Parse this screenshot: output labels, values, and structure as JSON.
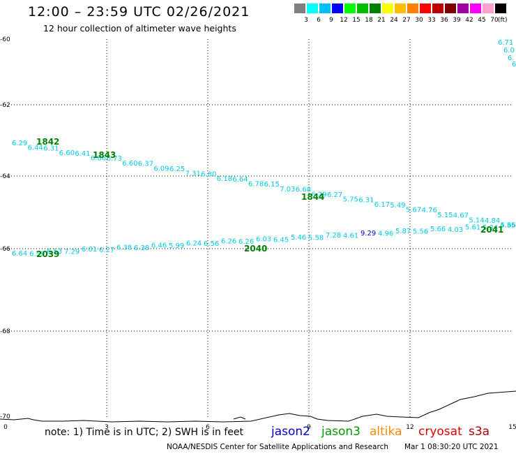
{
  "header": {
    "title": "12:00 – 23:59 UTC 02/26/2021",
    "subtitle": "12 hour collection of altimeter wave heights"
  },
  "legend": {
    "colors": [
      "#808080",
      "#00ffff",
      "#00bfff",
      "#0000ff",
      "#00ff00",
      "#00bf00",
      "#008000",
      "#ffff00",
      "#ffbf00",
      "#ff8000",
      "#ff0000",
      "#bf0000",
      "#800000",
      "#a000a0",
      "#ff00ff",
      "#ffa0d0",
      "#000000"
    ],
    "labels": [
      "3",
      "6",
      "9",
      "12",
      "15",
      "18",
      "21",
      "24",
      "27",
      "30",
      "33",
      "36",
      "39",
      "42",
      "45",
      "70"
    ],
    "unit": "(ft)"
  },
  "axes": {
    "x_ticks": [
      "0",
      "3",
      "6",
      "9",
      "12",
      "15"
    ],
    "y_ticks": [
      "-60",
      "-62",
      "-64",
      "-66",
      "-68",
      "-70"
    ]
  },
  "tracks": {
    "upper_heights": [
      "6.29",
      "6.44",
      "6.31",
      "6.60",
      "6.41",
      "6.86",
      "6.73",
      "6.60",
      "6.37",
      "6.09",
      "6.25",
      "7.31",
      "6.80",
      "6.18",
      "6.64",
      "6.78",
      "6.15",
      "7.03",
      "6.68",
      "6.29",
      "6.27",
      "5.75",
      "6.31",
      "6.17",
      "5.49",
      "5.67",
      "4.76",
      "5.15",
      "4.67",
      "5.14",
      "4.84",
      "5.66",
      "5.66"
    ],
    "upper_labels": [
      "1842",
      "1843",
      "1844"
    ],
    "lower_heights": [
      "6.64",
      "6.59",
      "6.53",
      "7.29",
      "6.01",
      "6.27",
      "6.38",
      "6.38",
      "6.46",
      "5.99",
      "6.24",
      "6.56",
      "6.26",
      "6.26",
      "6.03",
      "6.45",
      "5.46",
      "5.58",
      "7.28",
      "4.61",
      "9.29",
      "4.96",
      "5.87",
      "5.56",
      "5.66",
      "4.03",
      "5.61",
      "5.34",
      "4.35"
    ],
    "lower_labels": [
      "2039",
      "2040",
      "2041"
    ],
    "corner_heights": [
      "6.71",
      "6.0",
      "6.",
      "6."
    ]
  },
  "footer": {
    "note": "note: 1) Time is in UTC; 2) SWH is in feet",
    "satellites": [
      {
        "name": "jason2",
        "color": "#0000cc"
      },
      {
        "name": "jason3",
        "color": "#009900"
      },
      {
        "name": "altika",
        "color": "#ff8800"
      },
      {
        "name": "cryosat",
        "color": "#dd0000"
      },
      {
        "name": "s3a",
        "color": "#aa0000"
      }
    ],
    "credit": "NOAA/NESDIS Center for Satellite Applications and Research",
    "timestamp": "Mar  1 08:30:20 UTC 2021"
  },
  "colors": {
    "track_cyan": "#00c8e0",
    "rev_green": "#008000",
    "grid": "#000000"
  }
}
